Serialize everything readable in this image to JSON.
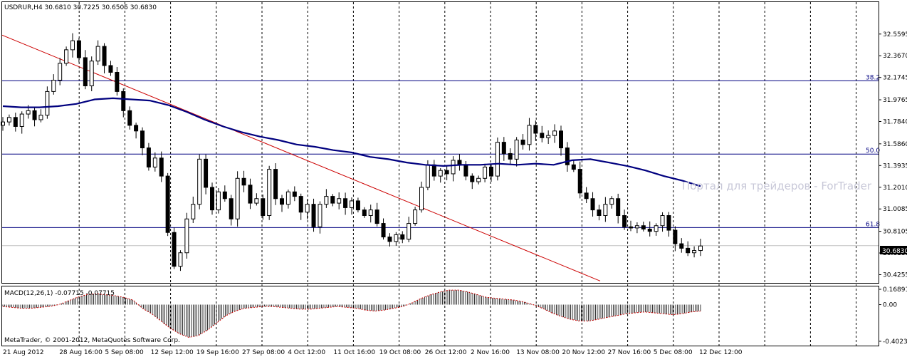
{
  "chart_data": {
    "type": "candlestick",
    "symbol_header": "USDRUR,H4  30.6810 30.7225 30.6505 30.6830",
    "watermark": "Портал для трейдеров - ForTrader",
    "footer": "MetaTrader, © 2001-2012, MetaQuotes Software Corp.",
    "current_price": "30.6830",
    "y_ticks": [
      "32.5595",
      "32.3670",
      "32.1745",
      "31.9765",
      "31.7840",
      "31.5860",
      "31.3935",
      "31.2010",
      "31.0085",
      "30.8105",
      "30.6180",
      "30.4255"
    ],
    "ylim": [
      30.3655,
      32.6655
    ],
    "x_labels": [
      "21 Aug 2012",
      "28 Aug 16:00",
      "5 Sep 08:00",
      "12 Sep 12:00",
      "19 Sep 16:00",
      "27 Sep 08:00",
      "4 Oct 12:00",
      "11 Oct 16:00",
      "19 Oct 08:00",
      "26 Oct 12:00",
      "2 Nov 16:00",
      "13 Nov 08:00",
      "20 Nov 12:00",
      "27 Nov 16:00",
      "5 Dec 08:00",
      "12 Dec 12:00"
    ],
    "fib_levels": [
      {
        "label": "38.2",
        "value": 32.145
      },
      {
        "label": "50.0",
        "value": 31.495
      },
      {
        "label": "61.8",
        "value": 30.8435
      }
    ],
    "trendline": {
      "start": 32.55,
      "end": 30.37,
      "color": "#cc0000"
    },
    "ma_color": "#00007f",
    "ma_points": [
      31.92,
      31.91,
      31.91,
      31.92,
      31.94,
      31.98,
      31.99,
      31.98,
      31.97,
      31.93,
      31.87,
      31.8,
      31.74,
      31.69,
      31.65,
      31.62,
      31.58,
      31.56,
      31.53,
      31.51,
      31.47,
      31.45,
      31.42,
      31.4,
      31.39,
      31.4,
      31.4,
      31.41,
      31.4,
      31.41,
      31.4,
      31.44,
      31.45,
      31.42,
      31.39,
      31.35,
      31.3,
      31.26,
      31.21
    ],
    "candles": [
      31.78,
      31.82,
      31.74,
      31.85,
      31.88,
      31.8,
      31.84,
      32.05,
      32.15,
      32.3,
      32.42,
      32.5,
      32.35,
      32.1,
      32.32,
      32.45,
      32.28,
      32.22,
      32.05,
      31.88,
      31.75,
      31.7,
      31.55,
      31.38,
      31.46,
      31.3,
      30.8,
      30.5,
      30.62,
      30.92,
      31.05,
      31.45,
      31.2,
      31.0,
      31.16,
      31.1,
      30.92,
      31.28,
      31.22,
      31.06,
      31.1,
      30.95,
      31.36,
      31.1,
      31.05,
      31.16,
      31.12,
      30.98,
      31.05,
      30.85,
      31.05,
      31.12,
      31.06,
      31.1,
      31.02,
      31.08,
      31.0,
      30.95,
      31.0,
      30.88,
      30.76,
      30.72,
      30.78,
      30.74,
      30.88,
      31.0,
      31.2,
      31.4,
      31.3,
      31.35,
      31.32,
      31.44,
      31.4,
      31.3,
      31.25,
      31.28,
      31.38,
      31.3,
      31.6,
      31.5,
      31.45,
      31.62,
      31.58,
      31.75,
      31.68,
      31.64,
      31.66,
      31.7,
      31.55,
      31.4,
      31.36,
      31.15,
      31.1,
      31.0,
      30.95,
      31.05,
      31.1,
      30.95,
      30.85,
      30.84,
      30.86,
      30.83,
      30.81,
      30.86,
      30.95,
      30.82,
      30.7,
      30.66,
      30.62,
      30.64,
      30.68
    ],
    "macd": {
      "label": "MACD(12,26,1) -0.07715 -0.07715",
      "y_ticks": [
        "0.16891",
        "0.00",
        "-0.40234"
      ],
      "ylim": [
        -0.45,
        0.2
      ],
      "values": [
        -0.02,
        -0.03,
        -0.04,
        -0.04,
        -0.03,
        -0.02,
        0.0,
        0.04,
        0.08,
        0.11,
        0.12,
        0.11,
        0.1,
        0.08,
        0.05,
        -0.04,
        -0.1,
        -0.18,
        -0.26,
        -0.32,
        -0.36,
        -0.34,
        -0.28,
        -0.2,
        -0.12,
        -0.07,
        -0.04,
        -0.03,
        -0.02,
        -0.02,
        -0.03,
        -0.04,
        -0.05,
        -0.05,
        -0.04,
        -0.03,
        -0.02,
        -0.03,
        -0.04,
        -0.06,
        -0.07,
        -0.06,
        -0.04,
        -0.02,
        0.02,
        0.07,
        0.11,
        0.14,
        0.16,
        0.16,
        0.14,
        0.11,
        0.08,
        0.07,
        0.06,
        0.05,
        0.03,
        0.0,
        -0.04,
        -0.09,
        -0.13,
        -0.16,
        -0.18,
        -0.18,
        -0.16,
        -0.14,
        -0.12,
        -0.1,
        -0.09,
        -0.08,
        -0.09,
        -0.1,
        -0.11,
        -0.1,
        -0.08,
        -0.07
      ]
    },
    "colors": {
      "bull": "#ffffff",
      "bear": "#000000",
      "grid": "#000000",
      "fib": "#000080",
      "current_line": "#c0c0c0"
    }
  }
}
